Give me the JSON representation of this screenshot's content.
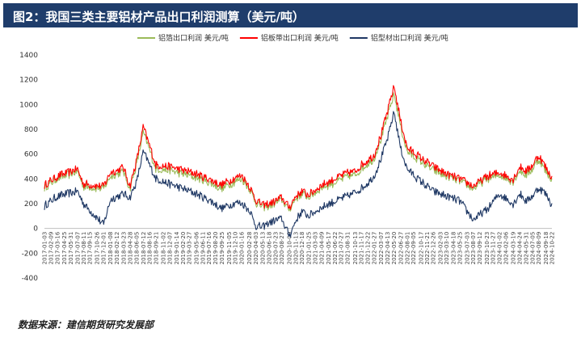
{
  "header": {
    "title": "图2：我国三类主要铝材产品出口利润测算（美元/吨）"
  },
  "footer": {
    "source": "数据来源：建信期货研究发展部"
  },
  "chart_data": {
    "type": "line",
    "title": "图2：我国三类主要铝材产品出口利润测算（美元/吨）",
    "xlabel": "",
    "ylabel": "",
    "ylim": [
      -400,
      1400
    ],
    "yticks": [
      -400,
      -200,
      0,
      200,
      400,
      600,
      800,
      1000,
      1200,
      1400
    ],
    "grid": false,
    "legend": "top-center",
    "x_tick_labels": [
      "2017-01-03",
      "2017-02-09",
      "2017-03-16",
      "2017-04-25",
      "2017-05-31",
      "2017-07-07",
      "2017-08-11",
      "2017-09-15",
      "2017-10-26",
      "2017-12-01",
      "2018-01-08",
      "2018-02-12",
      "2018-03-23",
      "2018-04-28",
      "2018-06-05",
      "2018-07-12",
      "2018-08-16",
      "2018-09-21",
      "2018-11-02",
      "2018-12-07",
      "2019-01-14",
      "2019-02-20",
      "2019-03-27",
      "2019-05-06",
      "2019-06-11",
      "2019-07-16",
      "2019-08-20",
      "2019-09-25",
      "2019-11-05",
      "2019-12-10",
      "2020-01-16",
      "2020-02-28",
      "2020-04-03",
      "2020-05-13",
      "2020-06-18",
      "2020-07-23",
      "2020-08-27",
      "2020-10-09",
      "2020-11-13",
      "2020-12-18",
      "2021-01-25",
      "2021-03-03",
      "2021-04-09",
      "2021-05-17",
      "2021-06-22",
      "2021-07-27",
      "2021-08-31",
      "2021-10-13",
      "2021-11-17",
      "2021-12-22",
      "2022-01-27",
      "2022-03-07",
      "2022-04-13",
      "2022-05-20",
      "2022-06-27",
      "2022-08-01",
      "2022-09-05",
      "2022-10-17",
      "2022-11-21",
      "2022-12-26",
      "2023-02-03",
      "2023-03-10",
      "2023-04-18",
      "2023-05-25",
      "2023-07-03",
      "2023-08-07",
      "2023-09-12",
      "2023-10-23",
      "2023-11-27",
      "2024-01-02",
      "2024-02-06",
      "2024-03-19",
      "2024-04-24",
      "2024-05-31",
      "2024-07-05",
      "2024-08-09",
      "2024-09-18",
      "2024-10-22"
    ],
    "anchor_dates": [
      "2017-01-03",
      "2017-03-16",
      "2017-07-07",
      "2017-08-11",
      "2017-12-01",
      "2018-01-08",
      "2018-03-23",
      "2018-04-28",
      "2018-06-05",
      "2018-07-12",
      "2018-09-21",
      "2018-12-07",
      "2019-02-20",
      "2019-05-06",
      "2019-07-16",
      "2019-09-25",
      "2019-12-10",
      "2020-01-16",
      "2020-02-28",
      "2020-04-03",
      "2020-05-13",
      "2020-06-18",
      "2020-08-27",
      "2020-10-09",
      "2020-11-13",
      "2020-12-18",
      "2021-01-25",
      "2021-04-09",
      "2021-06-22",
      "2021-08-31",
      "2021-10-13",
      "2021-11-17",
      "2022-01-27",
      "2022-03-07",
      "2022-04-13",
      "2022-05-20",
      "2022-06-27",
      "2022-08-01",
      "2022-10-17",
      "2022-12-26",
      "2023-03-10",
      "2023-05-25",
      "2023-08-07",
      "2023-10-23",
      "2024-01-02",
      "2024-03-19",
      "2024-04-24",
      "2024-05-31",
      "2024-07-05",
      "2024-08-09",
      "2024-09-18",
      "2024-10-22"
    ],
    "series": [
      {
        "name": "铝箔出口利润 美元/吨",
        "color": "#9bbb59",
        "values": [
          330,
          400,
          460,
          340,
          320,
          420,
          460,
          320,
          520,
          780,
          480,
          470,
          440,
          410,
          370,
          320,
          380,
          400,
          320,
          210,
          170,
          180,
          230,
          150,
          240,
          280,
          250,
          330,
          370,
          420,
          430,
          480,
          560,
          720,
          900,
          1090,
          820,
          620,
          540,
          470,
          420,
          380,
          320,
          400,
          430,
          380,
          470,
          430,
          480,
          560,
          460,
          390
        ]
      },
      {
        "name": "铝板带出口利润 美元/吨",
        "color": "#ff0000",
        "values": [
          350,
          420,
          480,
          360,
          340,
          450,
          490,
          340,
          550,
          820,
          510,
          500,
          470,
          440,
          400,
          350,
          410,
          430,
          340,
          230,
          190,
          200,
          250,
          170,
          260,
          300,
          270,
          350,
          400,
          450,
          460,
          510,
          590,
          750,
          940,
          1150,
          860,
          650,
          570,
          500,
          440,
          400,
          340,
          420,
          450,
          400,
          500,
          460,
          510,
          590,
          490,
          410
        ]
      },
      {
        "name": "铝型材出口利润 美元/吨",
        "color": "#1f3864",
        "values": [
          180,
          260,
          300,
          200,
          30,
          230,
          280,
          250,
          380,
          620,
          400,
          360,
          320,
          280,
          230,
          160,
          210,
          200,
          150,
          20,
          10,
          50,
          80,
          -60,
          60,
          140,
          100,
          170,
          220,
          260,
          290,
          320,
          420,
          560,
          720,
          940,
          640,
          480,
          380,
          300,
          260,
          220,
          70,
          150,
          280,
          200,
          280,
          220,
          260,
          330,
          280,
          190
        ]
      }
    ]
  }
}
